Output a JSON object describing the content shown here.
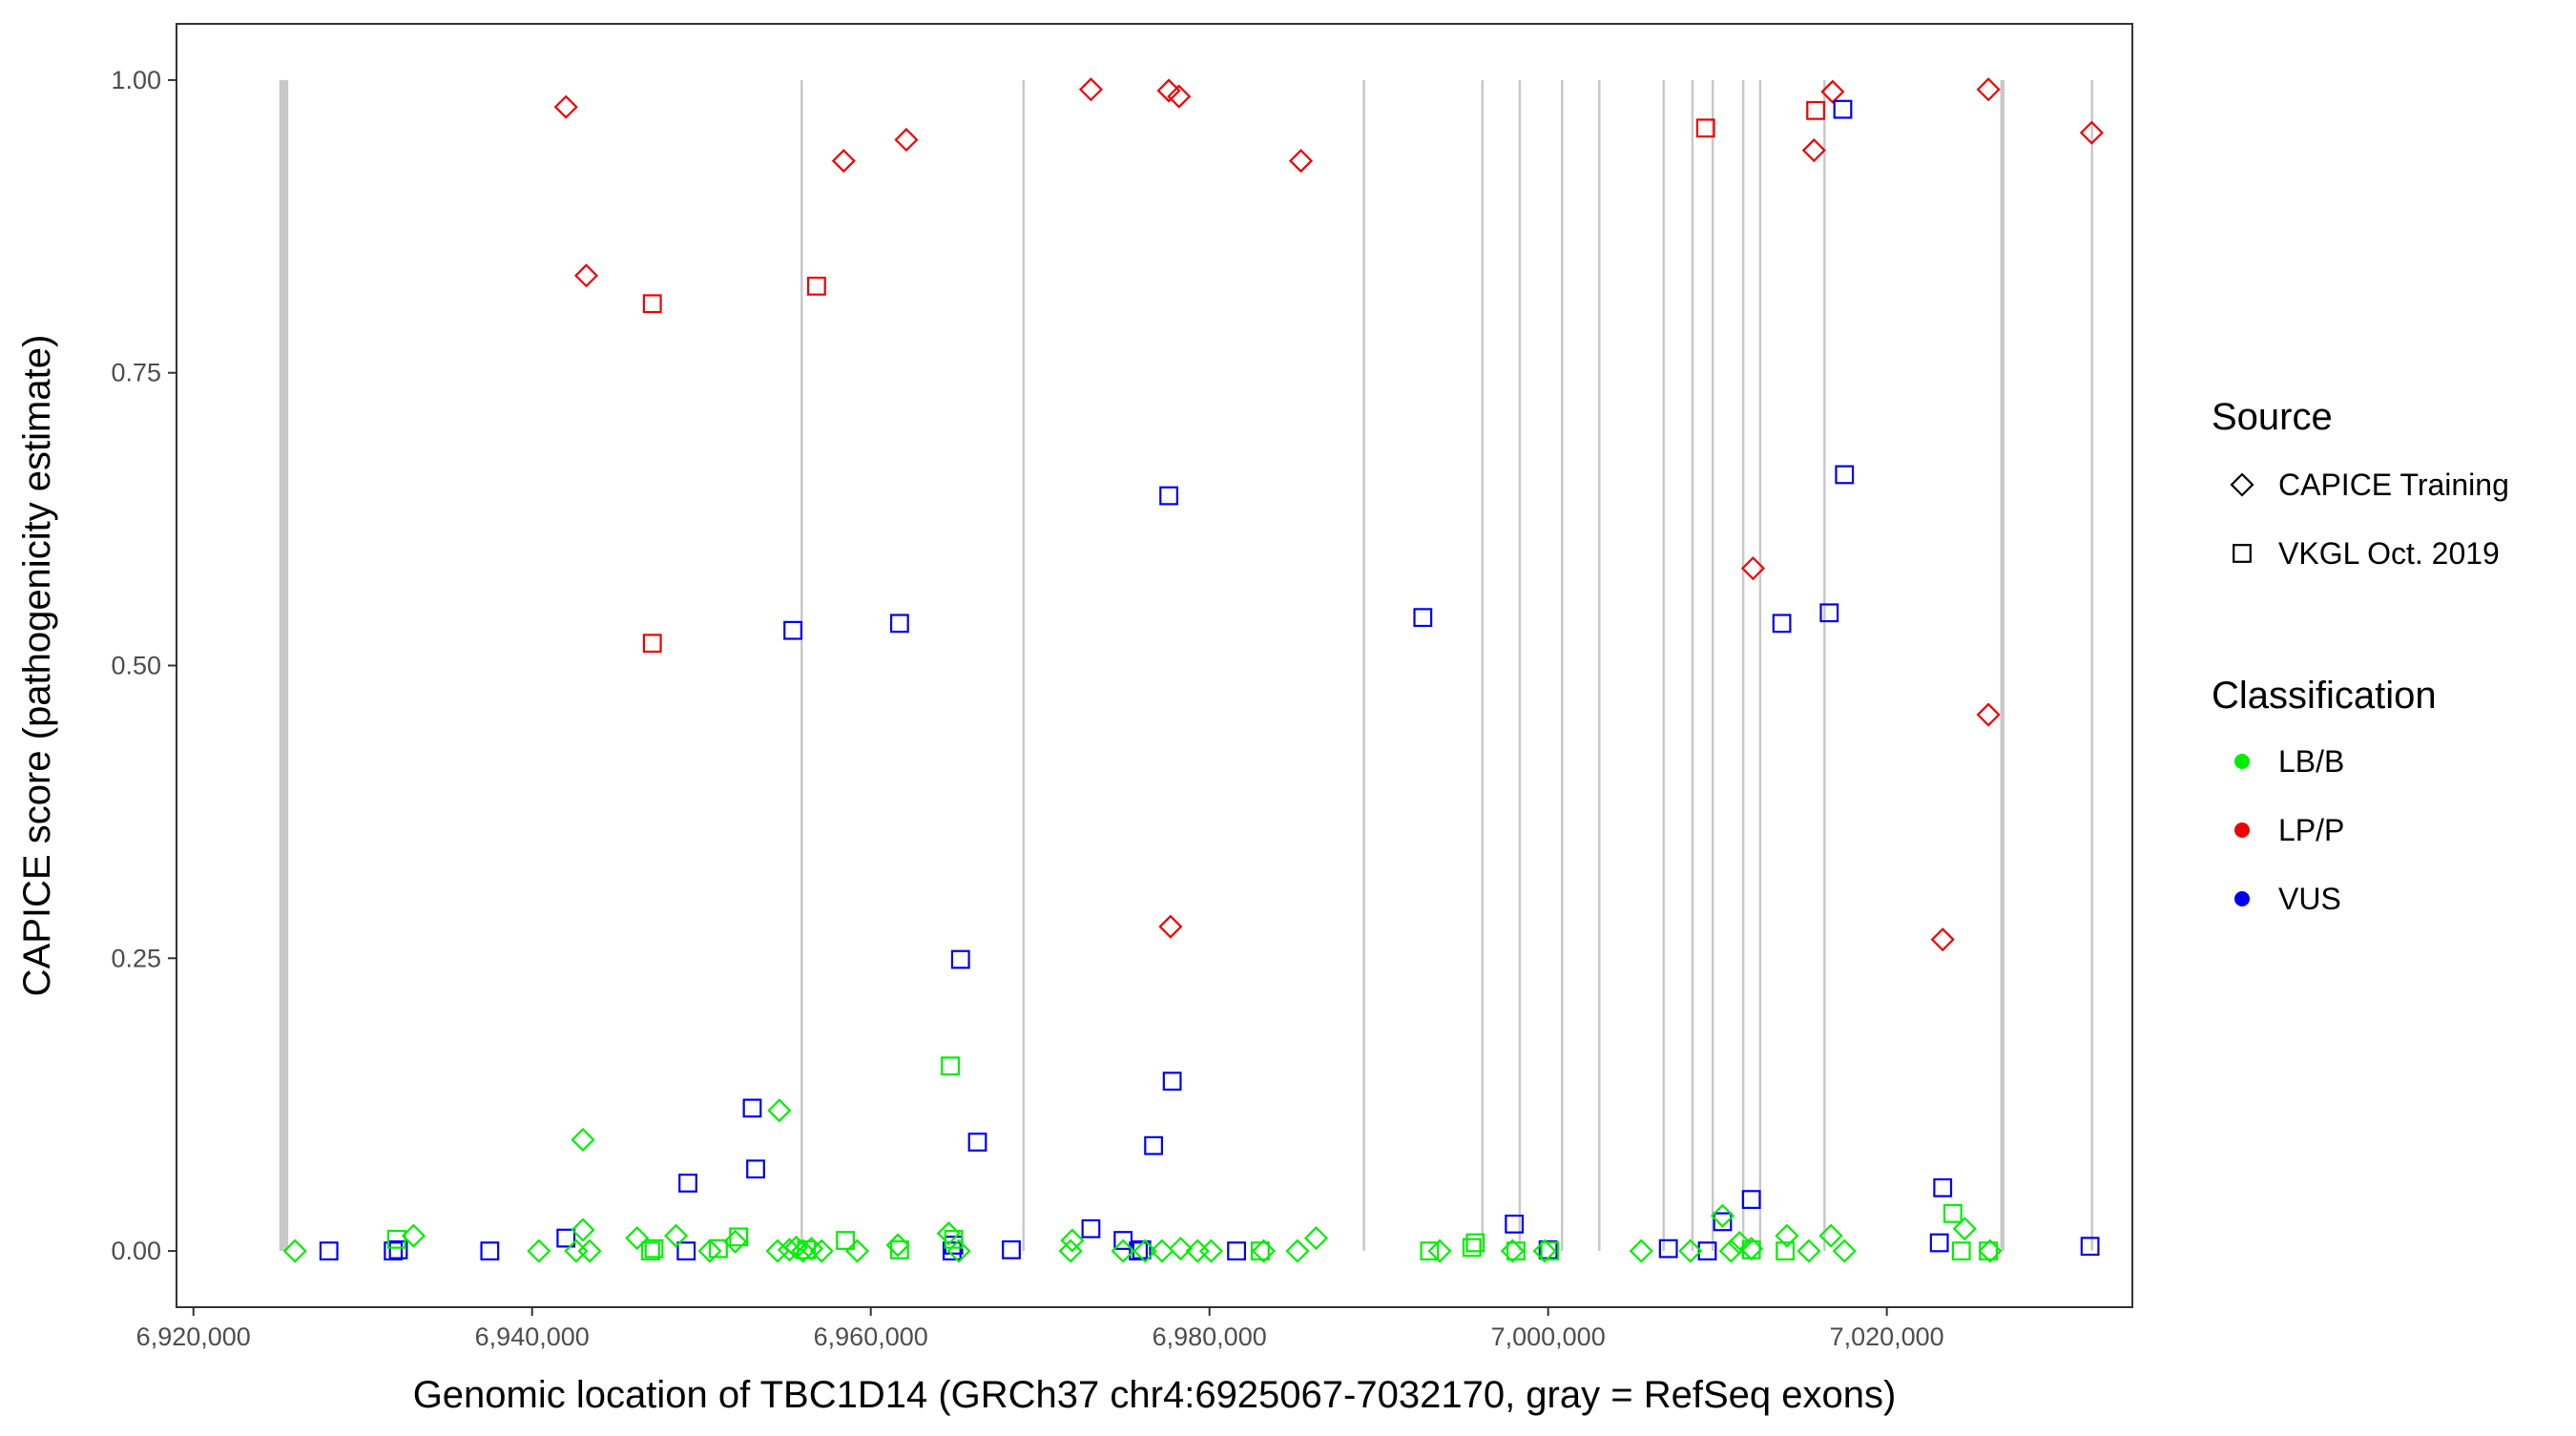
{
  "chart_data": {
    "type": "scatter",
    "xlabel": "Genomic location of TBC1D14 (GRCh37 chr4:6925067-7032170, gray = RefSeq exons)",
    "ylabel": "CAPICE score (pathogenicity estimate)",
    "xlim": [
      6919000,
      7034500
    ],
    "ylim": [
      -0.048,
      1.048
    ],
    "x_ticks": [
      6920000,
      6940000,
      6960000,
      6980000,
      7000000,
      7020000
    ],
    "x_tick_labels": [
      "6,920,000",
      "6,940,000",
      "6,960,000",
      "6,980,000",
      "7,000,000",
      "7,020,000"
    ],
    "y_ticks": [
      0,
      0.25,
      0.5,
      0.75,
      1.0
    ],
    "y_tick_labels": [
      "0.00",
      "0.25",
      "0.50",
      "0.75",
      "1.00"
    ],
    "grid": false,
    "exon_color": "#c8c8c8",
    "exons": [
      {
        "start": 6925067,
        "end": 6925600
      },
      {
        "start": 6955850,
        "end": 6955950
      },
      {
        "start": 6968950,
        "end": 6969050
      },
      {
        "start": 6989050,
        "end": 6989150
      },
      {
        "start": 6996050,
        "end": 6996150
      },
      {
        "start": 6998250,
        "end": 6998350
      },
      {
        "start": 7000750,
        "end": 7000850
      },
      {
        "start": 7002950,
        "end": 7003050
      },
      {
        "start": 7006750,
        "end": 7006850
      },
      {
        "start": 7008450,
        "end": 7008550
      },
      {
        "start": 7009650,
        "end": 7009750
      },
      {
        "start": 7011450,
        "end": 7011550
      },
      {
        "start": 7012450,
        "end": 7012550
      },
      {
        "start": 7016250,
        "end": 7016350
      },
      {
        "start": 7026700,
        "end": 7026950
      },
      {
        "start": 7032050,
        "end": 7032150
      }
    ],
    "legend": {
      "position": "right",
      "source_title": "Source",
      "source_items": [
        {
          "label": "CAPICE Training",
          "shape": "diamond"
        },
        {
          "label": "VKGL Oct. 2019",
          "shape": "square"
        }
      ],
      "class_title": "Classification",
      "class_items": [
        {
          "label": "LB/B",
          "color": "#00ee00"
        },
        {
          "label": "LP/P",
          "color": "#ee0000"
        },
        {
          "label": "VUS",
          "color": "#0000ee"
        }
      ]
    },
    "colors": {
      "LB/B": "#00ee00",
      "LP/P": "#ee0000",
      "VUS": "#0000ee"
    },
    "series": [
      {
        "classification": "LP/P",
        "source": "CAPICE Training",
        "points": [
          [
            6942000,
            0.977
          ],
          [
            6943200,
            0.833
          ],
          [
            6958400,
            0.931
          ],
          [
            6962100,
            0.949
          ],
          [
            6973000,
            0.992
          ],
          [
            6977600,
            0.991
          ],
          [
            6978200,
            0.986
          ],
          [
            6985400,
            0.931
          ],
          [
            6977700,
            0.277
          ],
          [
            7012100,
            0.583
          ],
          [
            7015700,
            0.94
          ],
          [
            7016800,
            0.99
          ],
          [
            7026000,
            0.992
          ],
          [
            7026000,
            0.458
          ],
          [
            7023300,
            0.266
          ],
          [
            7032100,
            0.955
          ]
        ]
      },
      {
        "classification": "LP/P",
        "source": "VKGL Oct. 2019",
        "points": [
          [
            6947100,
            0.809
          ],
          [
            6956800,
            0.824
          ],
          [
            6947100,
            0.519
          ],
          [
            7009300,
            0.959
          ],
          [
            7015800,
            0.974
          ]
        ]
      },
      {
        "classification": "VUS",
        "source": "VKGL Oct. 2019",
        "points": [
          [
            6955400,
            0.53
          ],
          [
            6961700,
            0.536
          ],
          [
            6977600,
            0.645
          ],
          [
            6992600,
            0.541
          ],
          [
            7013800,
            0.536
          ],
          [
            7016600,
            0.545
          ],
          [
            7017400,
            0.975
          ],
          [
            7017500,
            0.663
          ],
          [
            6965300,
            0.249
          ],
          [
            6953000,
            0.122
          ],
          [
            6953200,
            0.07
          ],
          [
            6949200,
            0.058
          ],
          [
            6966300,
            0.093
          ],
          [
            6976700,
            0.09
          ],
          [
            6977800,
            0.145
          ],
          [
            6973000,
            0.019
          ],
          [
            6974900,
            0.009
          ],
          [
            6998000,
            0.023
          ],
          [
            7012000,
            0.044
          ],
          [
            7010300,
            0.025
          ],
          [
            7023300,
            0.054
          ],
          [
            7023100,
            0.007
          ],
          [
            7032000,
            0.004
          ],
          [
            6942000,
            0.011
          ],
          [
            6928000,
            0.0
          ],
          [
            6931800,
            0.0
          ],
          [
            6932100,
            0.001
          ],
          [
            6937500,
            0.0
          ],
          [
            6949100,
            0.0
          ],
          [
            6964800,
            0.0
          ],
          [
            6964900,
            0.005
          ],
          [
            6968300,
            0.001
          ],
          [
            6975800,
            0.0
          ],
          [
            6976000,
            0.001
          ],
          [
            6981600,
            0.0
          ],
          [
            7000000,
            0.001
          ],
          [
            7007100,
            0.002
          ],
          [
            7009400,
            0.0
          ]
        ]
      },
      {
        "classification": "LB/B",
        "source": "VKGL Oct. 2019",
        "points": [
          [
            6964700,
            0.158
          ],
          [
            6932000,
            0.01
          ],
          [
            6947200,
            0.002
          ],
          [
            6952200,
            0.012
          ],
          [
            6958500,
            0.009
          ],
          [
            6964900,
            0.01
          ],
          [
            6995500,
            0.003
          ],
          [
            6995700,
            0.007
          ],
          [
            7023900,
            0.032
          ],
          [
            7024400,
            0.0
          ],
          [
            6947000,
            0.0
          ],
          [
            6951000,
            0.002
          ],
          [
            6956200,
            0.001
          ],
          [
            6961700,
            0.001
          ],
          [
            6983000,
            0.0
          ],
          [
            6993000,
            0.0
          ],
          [
            6998100,
            0.0
          ],
          [
            7000100,
            0.0
          ],
          [
            7012000,
            0.001
          ],
          [
            7014000,
            0.0
          ],
          [
            7026000,
            0.0
          ]
        ]
      },
      {
        "classification": "LB/B",
        "source": "CAPICE Training",
        "points": [
          [
            6926000,
            0.0
          ],
          [
            6933000,
            0.013
          ],
          [
            6940400,
            0.0
          ],
          [
            6943000,
            0.095
          ],
          [
            6943000,
            0.018
          ],
          [
            6942600,
            0.0
          ],
          [
            6943400,
            0.0
          ],
          [
            6946200,
            0.011
          ],
          [
            6948500,
            0.013
          ],
          [
            6950500,
            0.0
          ],
          [
            6952000,
            0.008
          ],
          [
            6954600,
            0.12
          ],
          [
            6954500,
            0.0
          ],
          [
            6955200,
            0.001
          ],
          [
            6955600,
            0.003
          ],
          [
            6956000,
            0.0
          ],
          [
            6956500,
            0.002
          ],
          [
            6957100,
            0.0
          ],
          [
            6959200,
            0.0
          ],
          [
            6961600,
            0.005
          ],
          [
            6964600,
            0.015
          ],
          [
            6965200,
            0.0
          ],
          [
            6971900,
            0.009
          ],
          [
            6971800,
            0.0
          ],
          [
            6974900,
            0.0
          ],
          [
            6976200,
            0.0
          ],
          [
            6977200,
            0.0
          ],
          [
            6978300,
            0.002
          ],
          [
            6979300,
            0.0
          ],
          [
            6980100,
            0.0
          ],
          [
            6983200,
            0.0
          ],
          [
            6985200,
            0.0
          ],
          [
            6986300,
            0.011
          ],
          [
            6993600,
            0.0
          ],
          [
            6997900,
            0.0
          ],
          [
            6999800,
            0.0
          ],
          [
            7005500,
            0.0
          ],
          [
            7008400,
            0.0
          ],
          [
            7010300,
            0.03
          ],
          [
            7010800,
            0.0
          ],
          [
            7011300,
            0.007
          ],
          [
            7012000,
            0.002
          ],
          [
            7014100,
            0.013
          ],
          [
            7015400,
            0.0
          ],
          [
            7016700,
            0.013
          ],
          [
            7017500,
            0.0
          ],
          [
            7024600,
            0.019
          ],
          [
            7026100,
            0.0
          ]
        ]
      }
    ]
  }
}
